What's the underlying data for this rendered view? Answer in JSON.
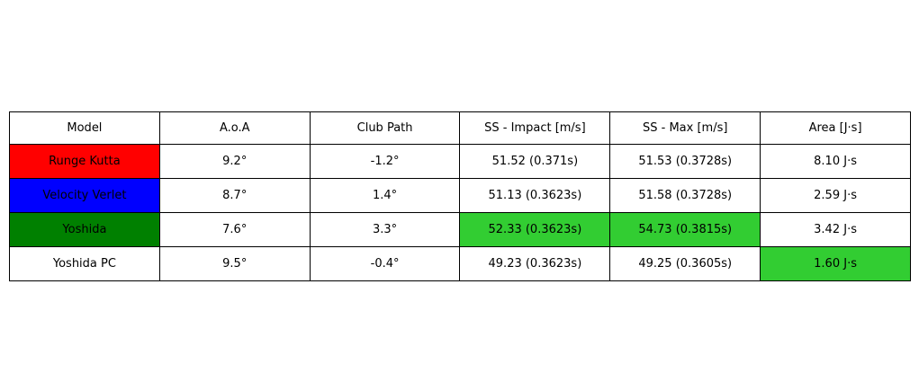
{
  "chart_data": {
    "type": "table",
    "columns": [
      "Model",
      "A.o.A",
      "Club Path",
      "SS - Impact [m/s]",
      "SS - Max [m/s]",
      "Area [J·s]"
    ],
    "rows": [
      [
        "Runge Kutta",
        "9.2°",
        "-1.2°",
        "51.52 (0.371s)",
        "51.53 (0.3728s)",
        "8.10 J·s"
      ],
      [
        "Velocity Verlet",
        "8.7°",
        "1.4°",
        "51.13 (0.3623s)",
        "51.58 (0.3728s)",
        "2.59 J·s"
      ],
      [
        "Yoshida",
        "7.6°",
        "3.3°",
        "52.33 (0.3623s)",
        "54.73 (0.3815s)",
        "3.42 J·s"
      ],
      [
        "Yoshida PC",
        "9.5°",
        "-0.4°",
        "49.23 (0.3623s)",
        "49.25 (0.3605s)",
        "1.60 J·s"
      ]
    ],
    "cell_colors": [
      [
        "#ff0000",
        "#ffffff",
        "#ffffff",
        "#ffffff",
        "#ffffff",
        "#ffffff"
      ],
      [
        "#0000ff",
        "#ffffff",
        "#ffffff",
        "#ffffff",
        "#ffffff",
        "#ffffff"
      ],
      [
        "#008000",
        "#ffffff",
        "#ffffff",
        "#32cd32",
        "#32cd32",
        "#ffffff"
      ],
      [
        "#ffffff",
        "#ffffff",
        "#ffffff",
        "#ffffff",
        "#ffffff",
        "#32cd32"
      ]
    ],
    "header_color": "#ffffff",
    "border_color": "#000000",
    "text_color": "#000000"
  }
}
